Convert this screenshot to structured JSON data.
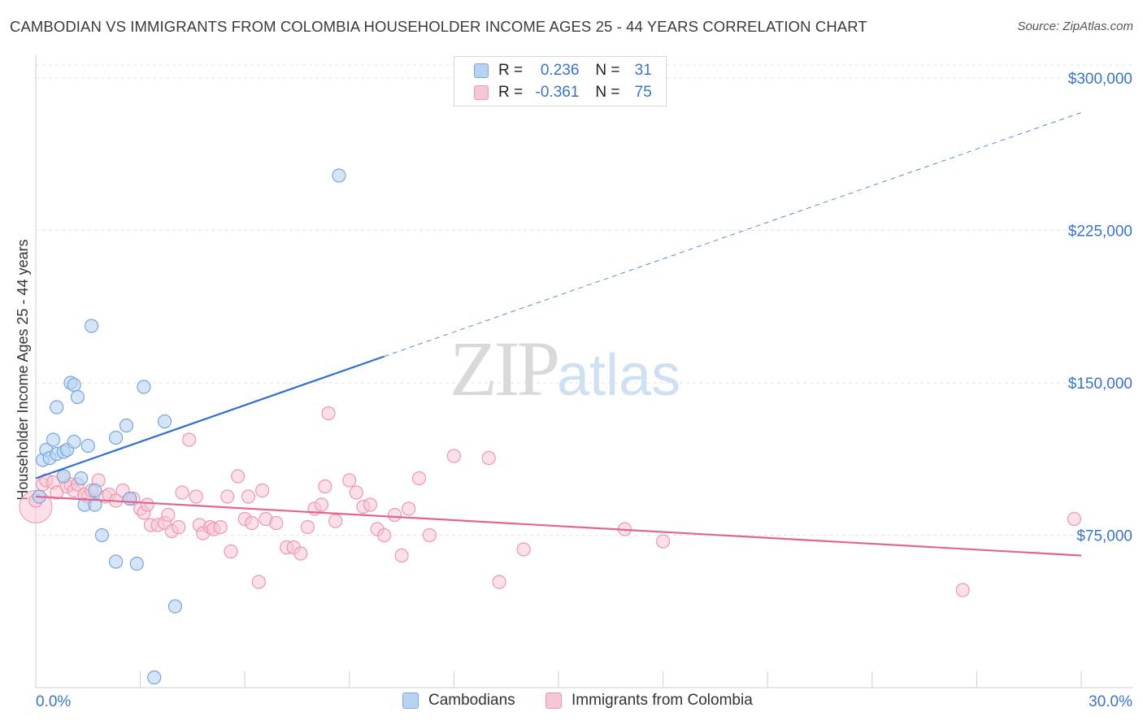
{
  "header": {
    "title": "CAMBODIAN VS IMMIGRANTS FROM COLOMBIA HOUSEHOLDER INCOME AGES 25 - 44 YEARS CORRELATION CHART",
    "source": "Source: ZipAtlas.com"
  },
  "watermark": {
    "zip": "ZIP",
    "atlas": "atlas"
  },
  "legend": {
    "rows": [
      {
        "r_label": "R =",
        "r_value": "0.236",
        "n_label": "N =",
        "n_value": "31"
      },
      {
        "r_label": "R =",
        "r_value": "-0.361",
        "n_label": "N =",
        "n_value": "75"
      }
    ]
  },
  "bottom_legend": {
    "series1": "Cambodians",
    "series2": "Immigrants from Colombia"
  },
  "colors": {
    "blue_fill": "#b8d3f2",
    "blue_stroke": "#7ba5dc",
    "blue_line": "#2e6fd0",
    "pink_fill": "#f7c6d6",
    "pink_stroke": "#ee96b2",
    "pink_line": "#e0668f",
    "tick_label": "#3a74c9",
    "grid": "#e2e2e2"
  },
  "chart_data": {
    "type": "scatter",
    "title": "CAMBODIAN VS IMMIGRANTS FROM COLOMBIA HOUSEHOLDER INCOME AGES 25 - 44 YEARS CORRELATION CHART",
    "xlabel": "",
    "ylabel": "Householder Income Ages 25 - 44 years",
    "xlim": [
      0,
      30
    ],
    "ylim": [
      0,
      300000
    ],
    "x_tick_labels": [
      "0.0%",
      "30.0%"
    ],
    "y_ticks": [
      75000,
      150000,
      225000,
      300000
    ],
    "y_tick_labels": [
      "$75,000",
      "$150,000",
      "$225,000",
      "$300,000"
    ],
    "grid": true,
    "legend_position": "top-center",
    "series": [
      {
        "name": "Cambodians",
        "R": 0.236,
        "N": 31,
        "trend": {
          "x0": 0,
          "y0": 103000,
          "x1": 10,
          "y1": 163000,
          "x_dash_end": 30,
          "y_dash_end": 283000
        },
        "points": [
          [
            0.1,
            94000
          ],
          [
            0.2,
            112000
          ],
          [
            0.3,
            117000
          ],
          [
            0.4,
            113000
          ],
          [
            0.5,
            122000
          ],
          [
            0.6,
            115000
          ],
          [
            0.6,
            138000
          ],
          [
            0.8,
            116000
          ],
          [
            0.8,
            104000
          ],
          [
            0.9,
            117000
          ],
          [
            1.0,
            150000
          ],
          [
            1.1,
            149000
          ],
          [
            1.1,
            121000
          ],
          [
            1.2,
            143000
          ],
          [
            1.3,
            103000
          ],
          [
            1.4,
            90000
          ],
          [
            1.5,
            119000
          ],
          [
            1.6,
            178000
          ],
          [
            1.7,
            90000
          ],
          [
            1.7,
            97000
          ],
          [
            1.9,
            75000
          ],
          [
            2.3,
            62000
          ],
          [
            2.3,
            123000
          ],
          [
            2.6,
            129000
          ],
          [
            2.7,
            93000
          ],
          [
            2.9,
            61000
          ],
          [
            3.1,
            148000
          ],
          [
            3.4,
            5000
          ],
          [
            3.7,
            131000
          ],
          [
            4.0,
            40000
          ],
          [
            8.7,
            252000
          ]
        ]
      },
      {
        "name": "Immigrants from Colombia",
        "R": -0.361,
        "N": 75,
        "trend": {
          "x0": 0,
          "y0": 94000,
          "x1": 30,
          "y1": 65000
        },
        "points": [
          [
            0.0,
            92000
          ],
          [
            0.2,
            100000
          ],
          [
            0.3,
            102000
          ],
          [
            0.5,
            101000
          ],
          [
            0.6,
            96000
          ],
          [
            0.8,
            104000
          ],
          [
            0.9,
            99000
          ],
          [
            1.0,
            100000
          ],
          [
            1.1,
            97000
          ],
          [
            1.2,
            100000
          ],
          [
            1.4,
            95000
          ],
          [
            1.5,
            94000
          ],
          [
            1.6,
            97000
          ],
          [
            1.8,
            102000
          ],
          [
            2.0,
            94000
          ],
          [
            2.1,
            95000
          ],
          [
            2.3,
            92000
          ],
          [
            2.5,
            97000
          ],
          [
            2.7,
            93000
          ],
          [
            2.8,
            93000
          ],
          [
            3.0,
            88000
          ],
          [
            3.1,
            86000
          ],
          [
            3.2,
            90000
          ],
          [
            3.3,
            80000
          ],
          [
            3.5,
            80000
          ],
          [
            3.7,
            81000
          ],
          [
            3.8,
            85000
          ],
          [
            3.9,
            77000
          ],
          [
            4.1,
            79000
          ],
          [
            4.2,
            96000
          ],
          [
            4.4,
            122000
          ],
          [
            4.6,
            94000
          ],
          [
            4.7,
            80000
          ],
          [
            4.8,
            76000
          ],
          [
            5.0,
            79000
          ],
          [
            5.1,
            78000
          ],
          [
            5.3,
            79000
          ],
          [
            5.5,
            94000
          ],
          [
            5.6,
            67000
          ],
          [
            5.8,
            104000
          ],
          [
            6.0,
            83000
          ],
          [
            6.1,
            94000
          ],
          [
            6.2,
            81000
          ],
          [
            6.4,
            52000
          ],
          [
            6.5,
            97000
          ],
          [
            6.6,
            83000
          ],
          [
            6.9,
            81000
          ],
          [
            7.2,
            69000
          ],
          [
            7.4,
            69000
          ],
          [
            7.6,
            66000
          ],
          [
            7.8,
            79000
          ],
          [
            8.0,
            88000
          ],
          [
            8.2,
            90000
          ],
          [
            8.3,
            99000
          ],
          [
            8.4,
            135000
          ],
          [
            8.6,
            82000
          ],
          [
            9.0,
            102000
          ],
          [
            9.2,
            96000
          ],
          [
            9.4,
            89000
          ],
          [
            9.6,
            90000
          ],
          [
            9.8,
            78000
          ],
          [
            10.0,
            75000
          ],
          [
            10.3,
            85000
          ],
          [
            10.5,
            65000
          ],
          [
            10.7,
            88000
          ],
          [
            11.0,
            103000
          ],
          [
            11.3,
            75000
          ],
          [
            12.0,
            114000
          ],
          [
            13.0,
            113000
          ],
          [
            13.3,
            52000
          ],
          [
            14.0,
            68000
          ],
          [
            16.9,
            78000
          ],
          [
            18.0,
            72000
          ],
          [
            26.6,
            48000
          ],
          [
            29.8,
            83000
          ]
        ]
      }
    ]
  }
}
